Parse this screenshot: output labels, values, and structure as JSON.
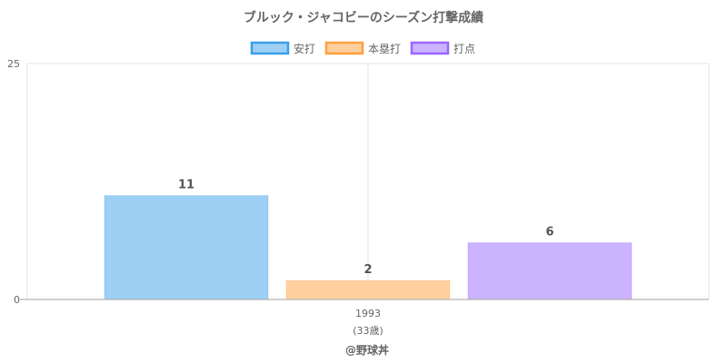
{
  "chart_data": {
    "type": "bar",
    "title": "ブルック・ジャコビーのシーズン打撃成績",
    "categories": [
      "1993"
    ],
    "category_sublabels": [
      "(33歳)"
    ],
    "series": [
      {
        "name": "安打",
        "values": [
          11
        ],
        "fill": "#9ecff5",
        "stroke": "#3a9fe8"
      },
      {
        "name": "本塁打",
        "values": [
          2
        ],
        "fill": "#ffd09e",
        "stroke": "#ff9f40"
      },
      {
        "name": "打点",
        "values": [
          6
        ],
        "fill": "#ccb3ff",
        "stroke": "#9966ff"
      }
    ],
    "ylim": [
      0,
      25
    ],
    "yticks": [
      0,
      25
    ],
    "grid": true,
    "legend_position": "top",
    "xlabel": "",
    "ylabel": ""
  },
  "footer": "@野球丼"
}
